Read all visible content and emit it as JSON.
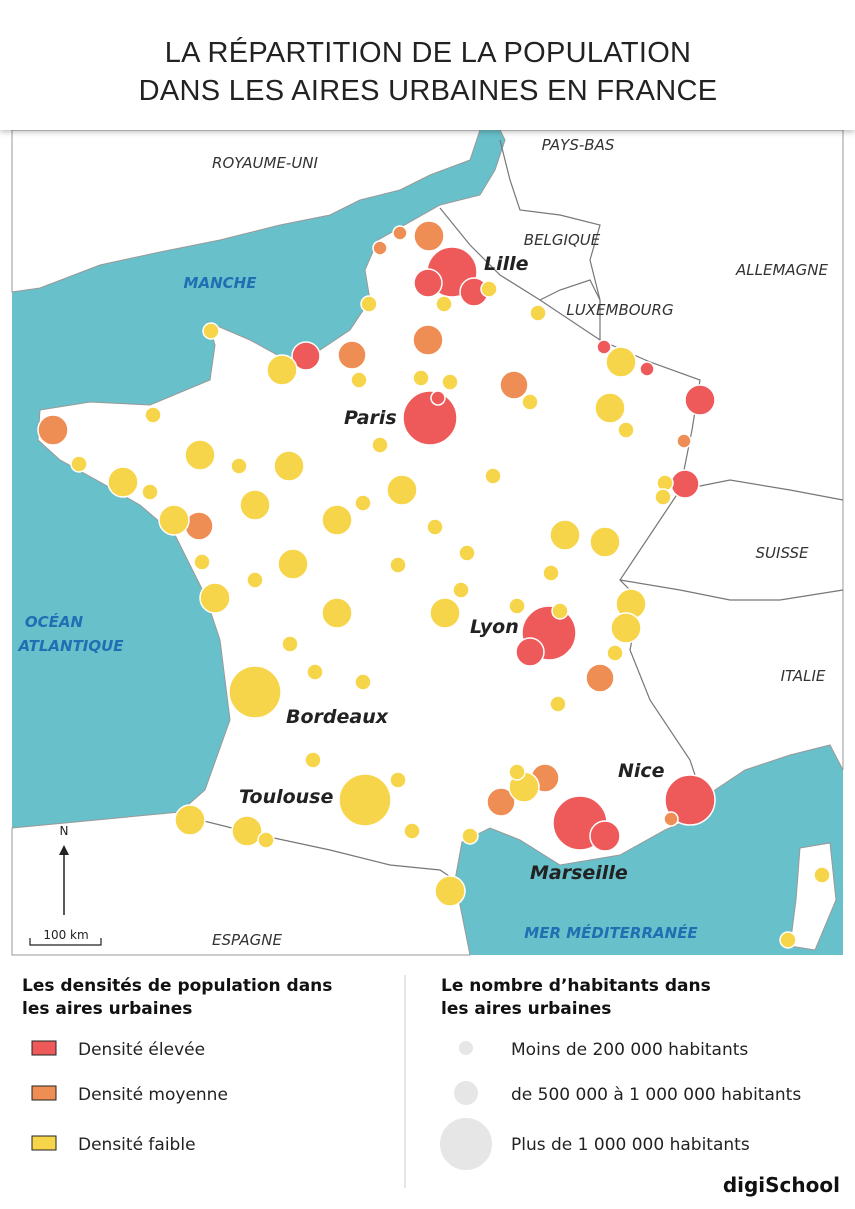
{
  "header": {
    "title_lines": [
      "LA RÉPARTITION DE LA POPULATION",
      "DANS LES AIRES URBAINES EN FRANCE"
    ]
  },
  "map": {
    "countries": [
      "ROYAUME-UNI",
      "PAYS-BAS",
      "BELGIQUE",
      "ALLEMAGNE",
      "LUXEMBOURG",
      "SUISSE",
      "ITALIE",
      "ESPAGNE"
    ],
    "seas": {
      "manche": "MANCHE",
      "atlantique": [
        "OCÉAN",
        "ATLANTIQUE"
      ],
      "mediterranee": "MER MÉDITERRANÉE"
    },
    "cities": [
      "Lille",
      "Paris",
      "Lyon",
      "Bordeaux",
      "Nice",
      "Toulouse",
      "Marseille"
    ],
    "compass": "N",
    "scale": "100 km"
  },
  "legend": {
    "density": {
      "title_lines": [
        "Les densités de population dans",
        "les aires urbaines"
      ],
      "items": [
        "Densité élevée",
        "Densité moyenne",
        "Densité faible"
      ]
    },
    "population": {
      "title_lines": [
        "Le nombre d’habitants dans",
        "les aires urbaines"
      ],
      "items": [
        "Moins de 200 000 habitants",
        "de 500 000 à 1 000 000 habitants",
        "Plus de 1 000 000 habitants"
      ]
    }
  },
  "logo": "digiSchool"
}
